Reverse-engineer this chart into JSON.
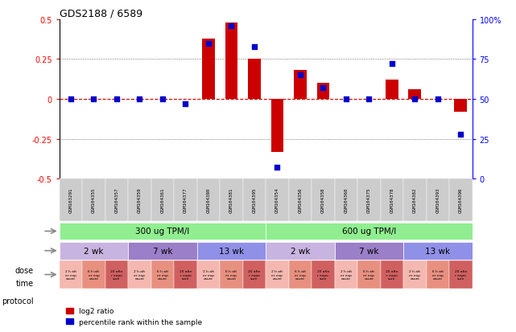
{
  "title": "GDS2188 / 6589",
  "samples": [
    "GSM103291",
    "GSM104355",
    "GSM104357",
    "GSM104359",
    "GSM104361",
    "GSM104377",
    "GSM104380",
    "GSM104381",
    "GSM104395",
    "GSM104354",
    "GSM104356",
    "GSM104358",
    "GSM104360",
    "GSM104375",
    "GSM104378",
    "GSM104382",
    "GSM104393",
    "GSM104396"
  ],
  "log2_ratio": [
    0.0,
    0.0,
    0.0,
    0.0,
    0.0,
    0.0,
    0.38,
    0.48,
    0.25,
    -0.33,
    0.18,
    0.1,
    0.0,
    0.0,
    0.12,
    0.06,
    0.0,
    -0.08
  ],
  "percentile": [
    50,
    50,
    50,
    50,
    50,
    47,
    85,
    96,
    83,
    7,
    65,
    57,
    50,
    50,
    72,
    50,
    50,
    28
  ],
  "dose_groups": [
    {
      "label": "300 ug TPM/l",
      "start": 0,
      "end": 9,
      "color": "#90EE90"
    },
    {
      "label": "600 ug TPM/l",
      "start": 9,
      "end": 18,
      "color": "#90EE90"
    }
  ],
  "time_groups": [
    {
      "label": "2 wk",
      "start": 0,
      "end": 3,
      "color": "#C8B4E0"
    },
    {
      "label": "7 wk",
      "start": 3,
      "end": 6,
      "color": "#9B7FC8"
    },
    {
      "label": "13 wk",
      "start": 6,
      "end": 9,
      "color": "#9090E8"
    },
    {
      "label": "2 wk",
      "start": 9,
      "end": 12,
      "color": "#C8B4E0"
    },
    {
      "label": "7 wk",
      "start": 12,
      "end": 15,
      "color": "#9B7FC8"
    },
    {
      "label": "13 wk",
      "start": 15,
      "end": 18,
      "color": "#9090E8"
    }
  ],
  "protocol_colors": [
    "#F4B8B0",
    "#E89080",
    "#D06060"
  ],
  "protocol_labels": [
    "2 h aft\ner exp\nosure",
    "6 h aft\ner exp\nosure",
    "20 afte\nr expo\nsure"
  ],
  "bar_color": "#CC0000",
  "dot_color": "#0000CC",
  "ylim_left": [
    -0.5,
    0.5
  ],
  "ylim_right": [
    0,
    100
  ],
  "yticks_left": [
    -0.5,
    -0.25,
    0.0,
    0.25,
    0.5
  ],
  "yticks_right": [
    0,
    25,
    50,
    75,
    100
  ],
  "ytick_left_labels": [
    "-0.5",
    "-0.25",
    "0",
    "0.25",
    "0.5"
  ],
  "ytick_right_labels": [
    "0",
    "25",
    "50",
    "75",
    "100%"
  ],
  "hline_color": "#CC0000",
  "dotted_color": "#555555",
  "bg_color": "#ffffff",
  "sample_label_bg": "#CCCCCC",
  "row_label_color": "#888888",
  "legend_log2": "log2 ratio",
  "legend_pct": "percentile rank within the sample"
}
